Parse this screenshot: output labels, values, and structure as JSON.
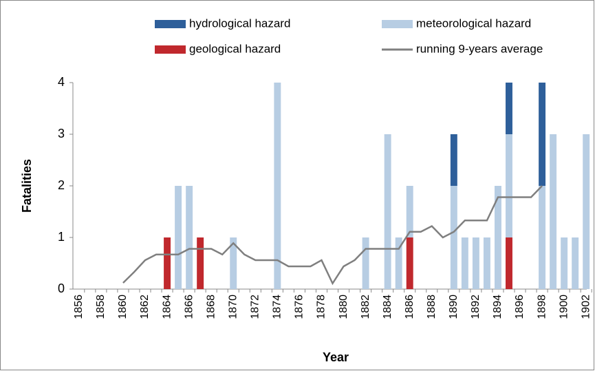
{
  "chart_data": {
    "type": "bar",
    "stacked": true,
    "y_label": "Fatalities",
    "x_label": "Year",
    "categories": [
      "1856",
      null,
      "1858",
      null,
      "1860",
      null,
      "1862",
      null,
      "1864",
      null,
      "1866",
      null,
      "1868",
      null,
      "1870",
      null,
      "1872",
      null,
      "1874",
      null,
      "1876",
      null,
      "1878",
      null,
      "1880",
      null,
      "1882",
      null,
      "1884",
      null,
      "1886",
      null,
      "1888",
      null,
      "1890",
      null,
      "1892",
      null,
      "1894",
      null,
      "1896",
      null,
      "1898",
      null,
      "1900",
      null,
      "1902"
    ],
    "series": [
      {
        "name": "hydrological hazard",
        "type": "bar",
        "color": "#2e5f9a",
        "values": [
          0,
          0,
          0,
          0,
          0,
          0,
          0,
          0,
          0,
          0,
          0,
          0,
          0,
          0,
          0,
          0,
          0,
          0,
          0,
          0,
          0,
          0,
          0,
          0,
          0,
          0,
          0,
          0,
          0,
          0,
          0,
          0,
          0,
          0,
          1,
          0,
          0,
          0,
          0,
          1,
          0,
          0,
          2,
          0,
          0,
          0,
          0
        ]
      },
      {
        "name": "meteorological hazard",
        "type": "bar",
        "color": "#b7cde3",
        "values": [
          0,
          0,
          0,
          0,
          0,
          0,
          0,
          0,
          0,
          2,
          2,
          0,
          0,
          0,
          1,
          0,
          0,
          0,
          4,
          0,
          0,
          0,
          0,
          0,
          0,
          0,
          1,
          0,
          3,
          1,
          1,
          0,
          0,
          0,
          2,
          1,
          1,
          1,
          2,
          2,
          0,
          0,
          2,
          3,
          1,
          1,
          3
        ]
      },
      {
        "name": "geological hazard",
        "type": "bar",
        "color": "#c0282d",
        "values": [
          0,
          0,
          0,
          0,
          0,
          0,
          0,
          0,
          1,
          0,
          0,
          1,
          0,
          0,
          0,
          0,
          0,
          0,
          0,
          0,
          0,
          0,
          0,
          0,
          0,
          0,
          0,
          0,
          0,
          0,
          1,
          0,
          0,
          0,
          0,
          0,
          0,
          0,
          0,
          1,
          0,
          0,
          0,
          0,
          0,
          0,
          0
        ]
      },
      {
        "name": "running 9-years average",
        "type": "line",
        "color": "#7f7f7f",
        "values": [
          null,
          null,
          null,
          null,
          0.12,
          0.33,
          0.56,
          0.67,
          0.67,
          0.67,
          0.78,
          0.78,
          0.78,
          0.67,
          0.89,
          0.67,
          0.56,
          0.56,
          0.56,
          0.44,
          0.44,
          0.44,
          0.56,
          0.11,
          0.44,
          0.56,
          0.78,
          0.78,
          0.78,
          0.78,
          1.11,
          1.11,
          1.22,
          1.0,
          1.11,
          1.33,
          1.33,
          1.33,
          1.78,
          1.78,
          1.78,
          1.78,
          2.0,
          null,
          null,
          null,
          null
        ]
      }
    ],
    "ylim": [
      0,
      4
    ],
    "yticks": [
      0,
      1,
      2,
      3,
      4
    ],
    "grid": false
  }
}
